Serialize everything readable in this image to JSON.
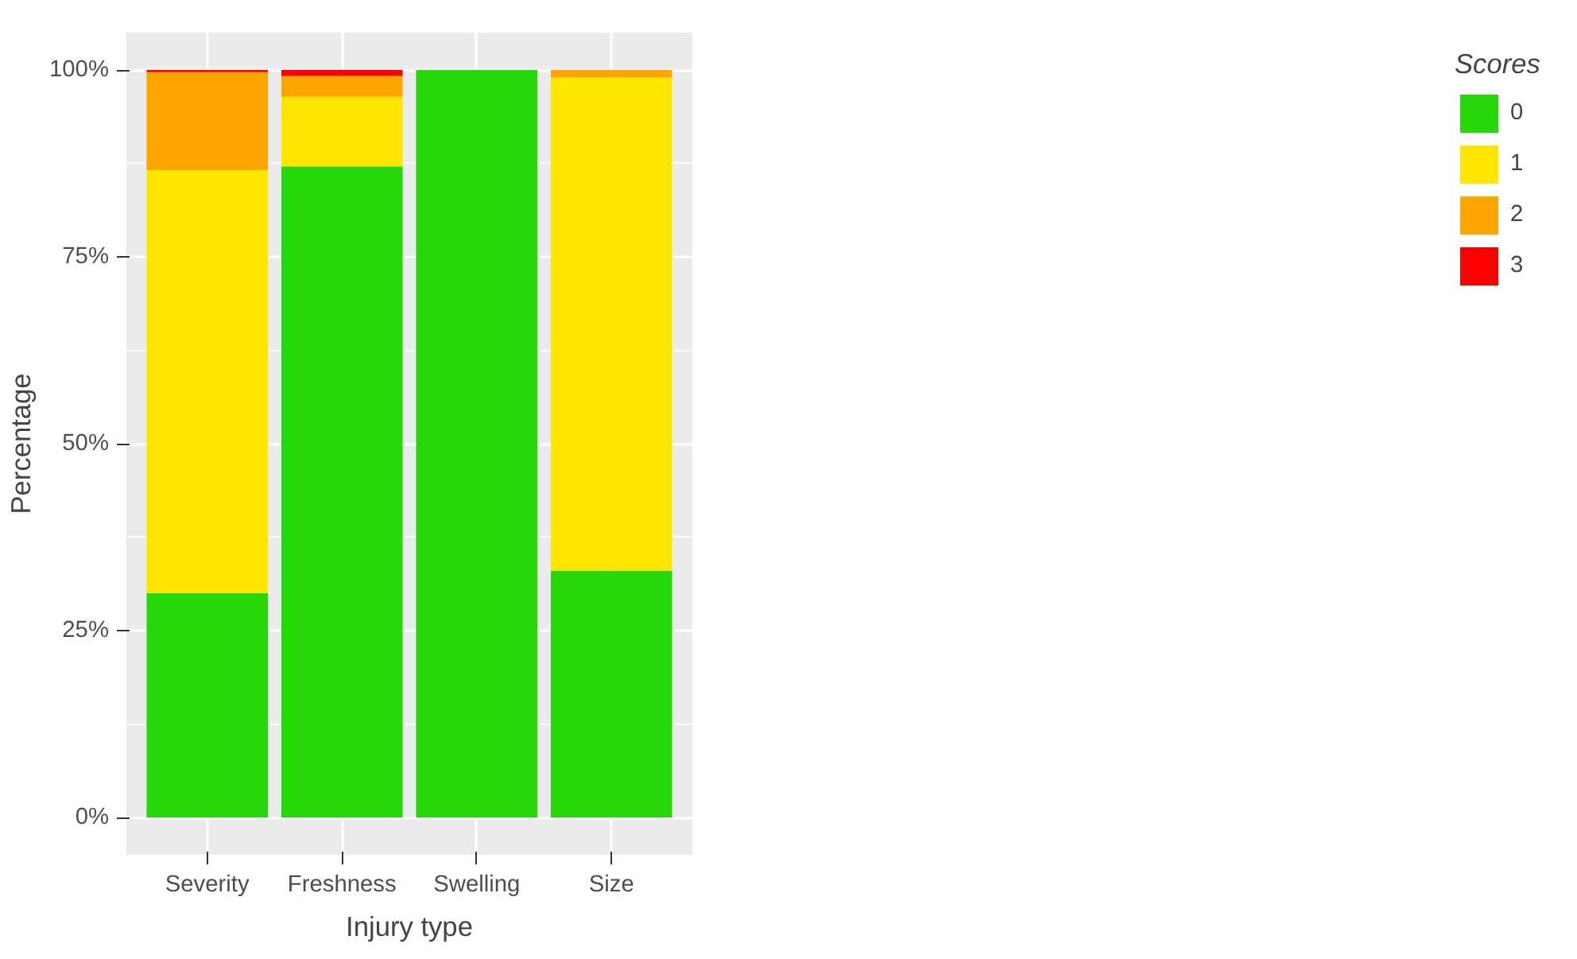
{
  "chart_data": {
    "type": "bar",
    "stacked": true,
    "xlabel": "Injury type",
    "ylabel": "Percentage",
    "legend_title": "Scores",
    "categories": [
      "Severity",
      "Freshness",
      "Swelling",
      "Size"
    ],
    "series": [
      {
        "name": "0",
        "color": "#26d80a",
        "values": [
          30,
          87.1,
          100,
          33
        ]
      },
      {
        "name": "1",
        "color": "#ffe600",
        "values": [
          56.6,
          9.3,
          0,
          66
        ]
      },
      {
        "name": "2",
        "color": "#ffa500",
        "values": [
          13.1,
          2.8,
          0,
          1
        ]
      },
      {
        "name": "3",
        "color": "#ff0000",
        "values": [
          0.3,
          0.8,
          0,
          0
        ]
      }
    ],
    "ylim": [
      -5,
      105
    ],
    "yticks": [
      {
        "value": 0,
        "label": "0%"
      },
      {
        "value": 25,
        "label": "25%"
      },
      {
        "value": 50,
        "label": "50%"
      },
      {
        "value": 75,
        "label": "75%"
      },
      {
        "value": 100,
        "label": "100%"
      }
    ],
    "grid": true,
    "legend": "right"
  }
}
